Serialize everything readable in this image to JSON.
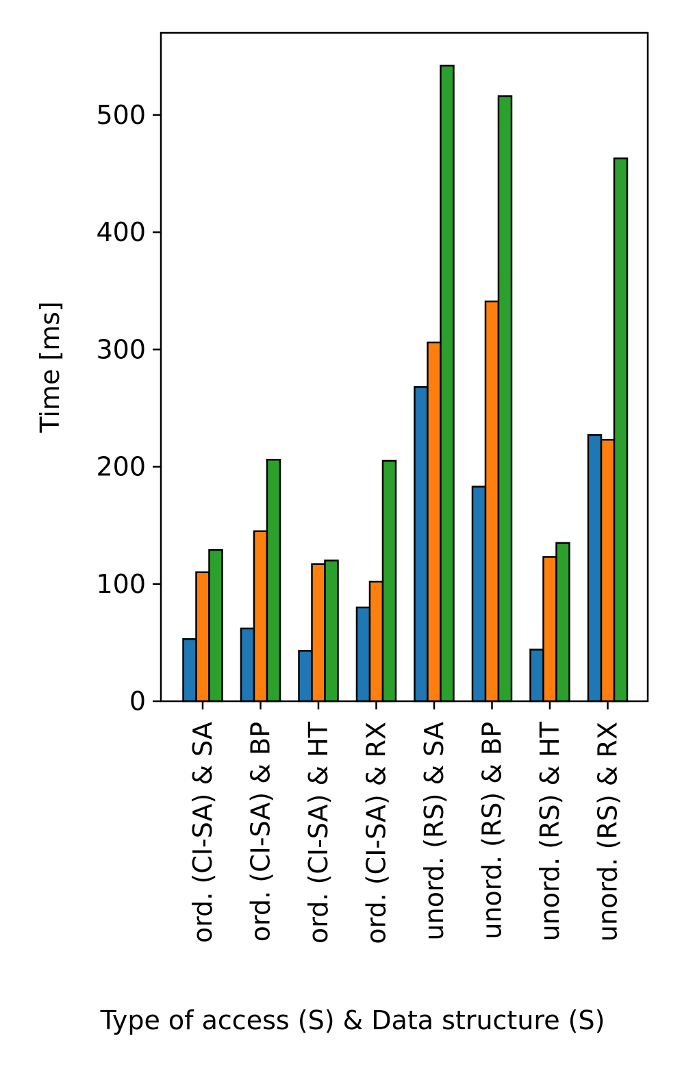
{
  "chart_data": {
    "type": "bar",
    "title": "",
    "xlabel": "Type of access (S) & Data structure (S)",
    "ylabel": "Time [ms]",
    "ylim": [
      0,
      570
    ],
    "yticks": [
      0,
      100,
      200,
      300,
      400,
      500
    ],
    "grid": false,
    "legend": "none",
    "categories": [
      "ord. (CI-SA) & SA",
      "ord. (CI-SA) & BP",
      "ord. (CI-SA) & HT",
      "ord. (CI-SA) & RX",
      "unord. (RS) & SA",
      "unord. (RS) & BP",
      "unord. (RS) & HT",
      "unord. (RS) & RX"
    ],
    "series": [
      {
        "color": "#1f77b4",
        "values": [
          53,
          62,
          43,
          80,
          268,
          183,
          44,
          227
        ]
      },
      {
        "color": "#ff7f0e",
        "values": [
          110,
          145,
          117,
          102,
          306,
          341,
          123,
          223
        ]
      },
      {
        "color": "#2ca02c",
        "values": [
          129,
          206,
          120,
          205,
          542,
          516,
          135,
          463
        ]
      }
    ]
  }
}
